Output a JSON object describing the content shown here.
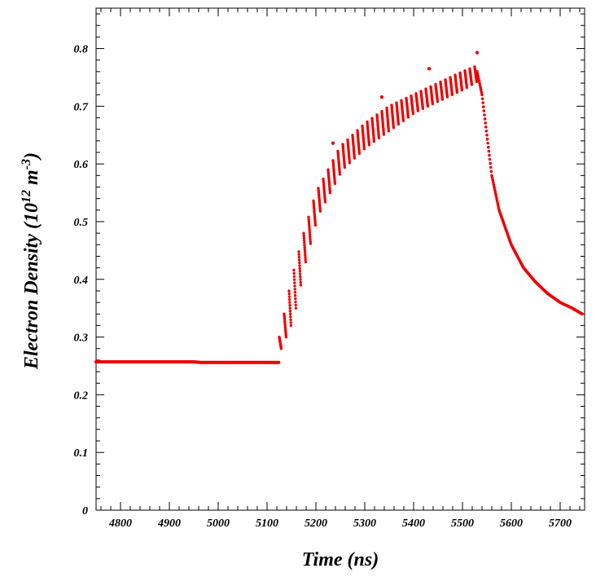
{
  "chart_data": {
    "type": "scatter",
    "xlabel": "Time (ns)",
    "ylabel": {
      "base": "Electron Density (10",
      "exp1": "12",
      "mid": " m",
      "exp2": "-3",
      "end": ")"
    },
    "xlim": [
      4750,
      5750
    ],
    "ylim": [
      0,
      0.87
    ],
    "xticks": [
      4800,
      4900,
      5000,
      5100,
      5200,
      5300,
      5400,
      5500,
      5600,
      5700
    ],
    "yticks": [
      0,
      0.1,
      0.2,
      0.3,
      0.4,
      0.5,
      0.6,
      0.7,
      0.8
    ],
    "ytick_labels": [
      "0",
      "0.1",
      "0.2",
      "0.3",
      "0.4",
      "0.5",
      "0.6",
      "0.7",
      "0.8"
    ],
    "grid": false,
    "marker_color": "#ee0000",
    "series": [
      {
        "segments": [
          {
            "phase": "baseline",
            "x": [
              4750,
              4800,
              4850,
              4900,
              4950,
              4965,
              5000,
              5050,
              5100,
              5125
            ],
            "y": [
              0.257,
              0.257,
              0.257,
              0.257,
              0.257,
              0.256,
              0.256,
              0.256,
              0.256,
              0.256
            ]
          },
          {
            "phase": "rise_envelope_upper",
            "x": [
              5125,
              5150,
              5175,
              5200,
              5250,
              5300,
              5350,
              5400,
              5450,
              5500,
              5530
            ],
            "y": [
              0.3,
              0.4,
              0.48,
              0.55,
              0.63,
              0.67,
              0.7,
              0.72,
              0.74,
              0.76,
              0.77
            ]
          },
          {
            "phase": "rise_envelope_lower",
            "x": [
              5125,
              5150,
              5175,
              5200,
              5250,
              5300,
              5350,
              5400,
              5450,
              5500,
              5530
            ],
            "y": [
              0.28,
              0.33,
              0.43,
              0.51,
              0.59,
              0.63,
              0.66,
              0.69,
              0.71,
              0.73,
              0.745
            ]
          },
          {
            "phase": "decay",
            "x": [
              5530,
              5540,
              5550,
              5560,
              5575,
              5600,
              5625,
              5650,
              5675,
              5700,
              5725,
              5745
            ],
            "y": [
              0.76,
              0.72,
              0.65,
              0.58,
              0.52,
              0.46,
              0.42,
              0.395,
              0.375,
              0.36,
              0.35,
              0.34
            ]
          }
        ],
        "outliers": [
          {
            "x": 5235,
            "y": 0.636
          },
          {
            "x": 5335,
            "y": 0.716
          },
          {
            "x": 5432,
            "y": 0.765
          },
          {
            "x": 5530,
            "y": 0.793
          }
        ]
      }
    ]
  }
}
